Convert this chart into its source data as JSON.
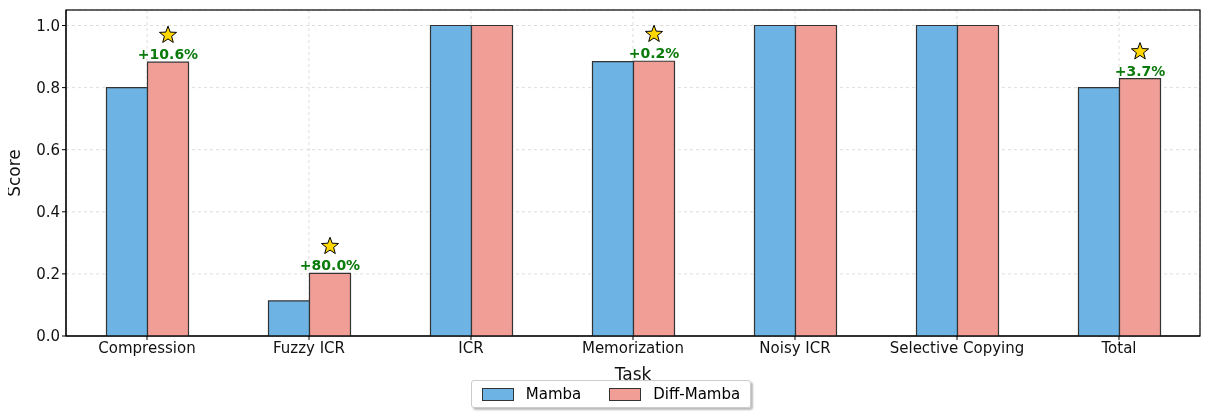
{
  "chart_data": {
    "type": "bar",
    "xlabel": "Task",
    "ylabel": "Score",
    "categories": [
      "Compression",
      "Fuzzy ICR",
      "ICR",
      "Memorization",
      "Noisy ICR",
      "Selective Copying",
      "Total"
    ],
    "series": [
      {
        "name": "Mamba",
        "color": "#6db3e3",
        "values": [
          0.8,
          0.113,
          1.0,
          0.884,
          1.0,
          1.0,
          0.8
        ]
      },
      {
        "name": "Diff-Mamba",
        "color": "#f09e96",
        "values": [
          0.882,
          0.202,
          1.0,
          0.885,
          1.0,
          1.0,
          0.829
        ]
      }
    ],
    "ylim": [
      0,
      1.05
    ],
    "yticks": [
      {
        "value": 0,
        "label": "0.0"
      },
      {
        "value": 0.2,
        "label": "0.2"
      },
      {
        "value": 0.4,
        "label": "0.4"
      },
      {
        "value": 0.6,
        "label": "0.6"
      },
      {
        "value": 0.8,
        "label": "0.8"
      },
      {
        "value": 1,
        "label": "1.0"
      }
    ],
    "grid": true,
    "legend": "bottom",
    "annotations": [
      {
        "text": "+10.6%",
        "x": "Compression",
        "y": 0.882
      },
      {
        "text": "+80.0%",
        "x": "Fuzzy ICR",
        "y": 0.202
      },
      {
        "text": "+0.2%",
        "x": "Memorization",
        "y": 0.885
      },
      {
        "text": "+3.7%",
        "x": "Total",
        "y": 0.829
      }
    ]
  }
}
